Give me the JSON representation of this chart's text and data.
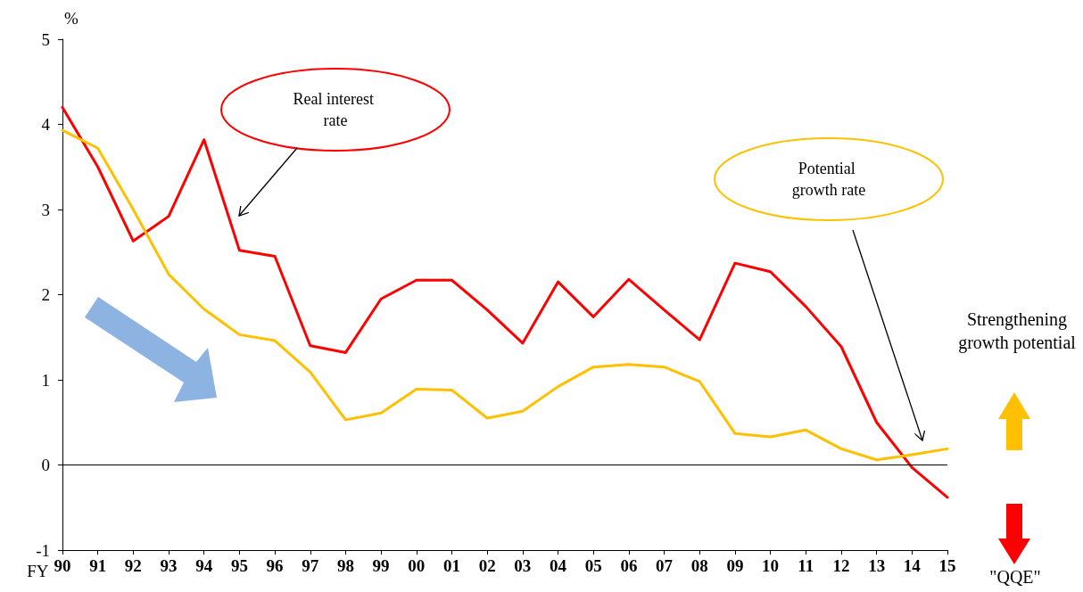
{
  "chart_data": {
    "type": "line",
    "ylabel": "%",
    "xlabel": "FY",
    "categories": [
      "90",
      "91",
      "92",
      "93",
      "94",
      "95",
      "96",
      "97",
      "98",
      "99",
      "00",
      "01",
      "02",
      "03",
      "04",
      "05",
      "06",
      "07",
      "08",
      "09",
      "10",
      "11",
      "12",
      "13",
      "14",
      "15"
    ],
    "series": [
      {
        "name": "Real interest rate",
        "color": "#ff0000",
        "values": [
          4.2,
          3.5,
          2.63,
          2.92,
          3.82,
          2.52,
          2.45,
          1.4,
          1.32,
          1.95,
          2.17,
          2.17,
          1.82,
          1.43,
          2.15,
          1.74,
          2.18,
          1.82,
          1.47,
          2.37,
          2.27,
          1.86,
          1.39,
          0.5,
          -0.03,
          -0.38
        ]
      },
      {
        "name": "Potential growth rate",
        "color": "#ffc000",
        "values": [
          3.93,
          3.72,
          3.0,
          2.24,
          1.83,
          1.53,
          1.46,
          1.09,
          0.53,
          0.61,
          0.89,
          0.88,
          0.55,
          0.63,
          0.92,
          1.15,
          1.18,
          1.15,
          0.98,
          0.37,
          0.33,
          0.41,
          0.19,
          0.06,
          0.12,
          0.19
        ]
      }
    ],
    "ylim": [
      -1,
      5
    ],
    "yticks": [
      -1,
      0,
      1,
      2,
      3,
      4,
      5
    ],
    "ref_lines": [
      {
        "axis": "y",
        "value": 0,
        "color": "#000000"
      }
    ],
    "annotations": [
      "Strengthening growth potential",
      "\"QQE\""
    ],
    "grid": false,
    "legend": false,
    "marker": "none",
    "line_style": "solid"
  }
}
